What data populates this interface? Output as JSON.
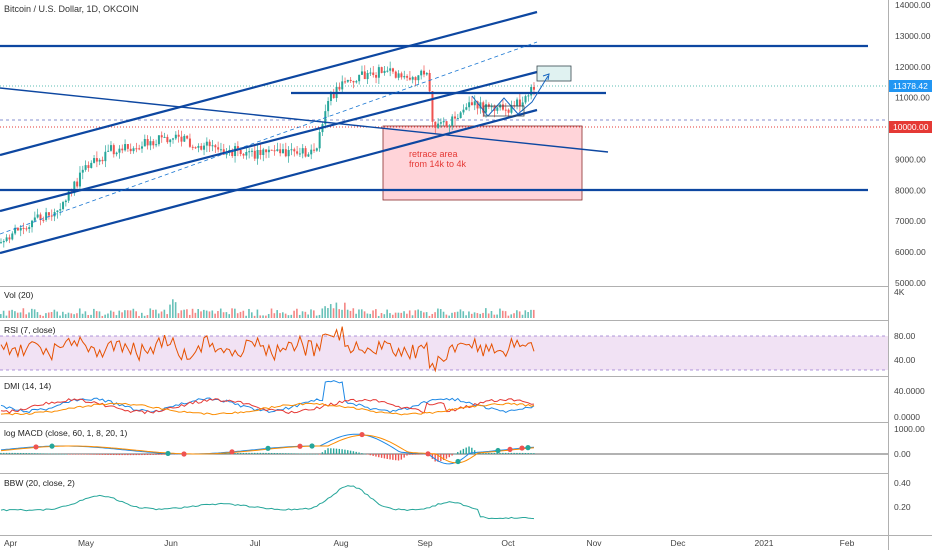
{
  "chart_data": [
    {
      "type": "candlestick",
      "title": "Bitcoin / U.S. Dollar, 1D, OKCOIN",
      "price_axis": {
        "min": 5000,
        "max": 14000,
        "ticks": [
          "14000.00",
          "13000.00",
          "12000.00",
          "11000.00",
          "10000.00",
          "9000.00",
          "8000.00",
          "7000.00",
          "6000.00",
          "5000.00"
        ]
      },
      "last_price_label": "11378.42",
      "level_label": "10000.00",
      "x_ticks": [
        "Apr",
        "May",
        "Jun",
        "Jul",
        "Aug",
        "Sep",
        "Oct",
        "Nov",
        "Dec",
        "2021",
        "Feb"
      ],
      "annotation": {
        "line1": "retrace area",
        "line2": "from 14k to 4k",
        "top_price": 10000,
        "bottom_price": 7600
      },
      "horizontal_levels": [
        12650,
        11100,
        7950
      ],
      "colors": {
        "up": "#26a69a",
        "down": "#ef5350",
        "lines": "#0d47a1",
        "retrace_fill": "#ffcdd2",
        "retrace_text": "#e53935",
        "price_label": "#2196f3",
        "level": "#e53935"
      }
    },
    {
      "type": "bar",
      "title": "Vol (20)",
      "ticks": [
        "4K"
      ]
    },
    {
      "type": "line",
      "title": "RSI (7, close)",
      "ticks": [
        "80.00",
        "40.00"
      ],
      "band": [
        20,
        80
      ]
    },
    {
      "type": "line",
      "title": "DMI (14, 14)",
      "ticks": [
        "40.0000",
        "0.0000"
      ]
    },
    {
      "type": "line",
      "title": "log MACD (close, 60, 1, 8, 20, 1)",
      "ticks": [
        "1000.00",
        "0.00"
      ]
    },
    {
      "type": "line",
      "title": "BBW (20, close, 2)",
      "ticks": [
        "0.40",
        "0.20"
      ]
    }
  ]
}
